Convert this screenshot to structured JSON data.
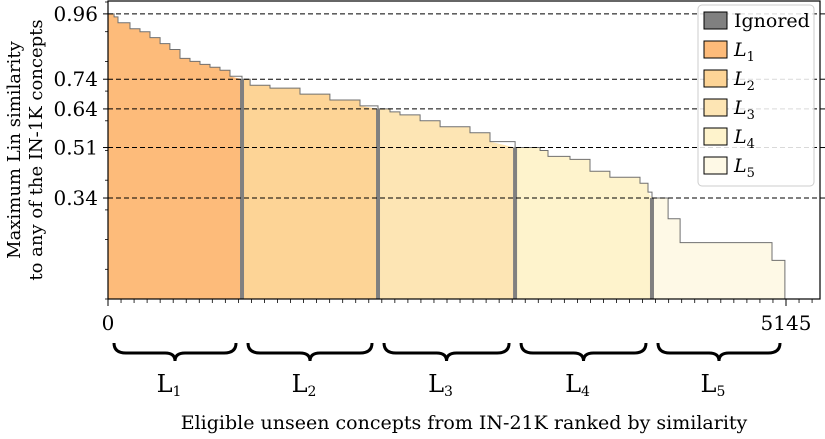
{
  "chart_data": {
    "type": "area",
    "title": "",
    "xlabel": "Eligible unseen concepts from IN-21K ranked by similarity",
    "ylabel_lines": [
      "Maximum Lin similarity",
      "to any of the IN-1K concepts"
    ],
    "xlim": [
      0,
      5145
    ],
    "ylim": [
      0,
      1
    ],
    "x_ticks": [
      0,
      5145
    ],
    "x_tick_labels": [
      "0",
      "5145"
    ],
    "y_ticks": [
      0.96,
      0.74,
      0.64,
      0.51,
      0.34
    ],
    "y_tick_labels": [
      "0.96",
      "0.74",
      "0.64",
      "0.51",
      "0.34"
    ],
    "hlines": [
      0.96,
      0.74,
      0.64,
      0.51,
      0.34
    ],
    "hline_style": "dashed",
    "grid": false,
    "legend_position": "upper right",
    "legend": [
      {
        "label": "Ignored",
        "color": "#808080"
      },
      {
        "label": "L1",
        "color": "#fdbb7a"
      },
      {
        "label": "L2",
        "color": "#fdd496"
      },
      {
        "label": "L3",
        "color": "#fde5b4"
      },
      {
        "label": "L4",
        "color": "#fef3cc"
      },
      {
        "label": "L5",
        "color": "#fef9e6"
      }
    ],
    "ignored_boundaries": [
      1017,
      2049,
      3089,
      4128
    ],
    "levels": [
      {
        "name": "L1",
        "x_range": [
          0,
          1017
        ],
        "sim_range": [
          0.74,
          0.96
        ],
        "color": "#fdbb7a"
      },
      {
        "name": "L2",
        "x_range": [
          1017,
          2049
        ],
        "sim_range": [
          0.64,
          0.74
        ],
        "color": "#fdd496"
      },
      {
        "name": "L3",
        "x_range": [
          2049,
          3089
        ],
        "sim_range": [
          0.51,
          0.64
        ],
        "color": "#fde5b4"
      },
      {
        "name": "L4",
        "x_range": [
          3089,
          4128
        ],
        "sim_range": [
          0.34,
          0.51
        ],
        "color": "#fef3cc"
      },
      {
        "name": "L5",
        "x_range": [
          4128,
          5145
        ],
        "sim_range": [
          0.0,
          0.34
        ],
        "color": "#fef9e6"
      }
    ],
    "curve": {
      "x": [
        0,
        46,
        76,
        121,
        167,
        243,
        319,
        395,
        470,
        546,
        622,
        698,
        774,
        850,
        926,
        1017,
        1078,
        1229,
        1457,
        1684,
        1912,
        2049,
        2140,
        2216,
        2368,
        2520,
        2747,
        2899,
        3089,
        3279,
        3339,
        3506,
        3658,
        3809,
        4037,
        4098,
        4128,
        4242,
        4250,
        4326,
        4341,
        5039,
        5039,
        5122,
        5137
      ],
      "y": [
        0.96,
        0.95,
        0.93,
        0.93,
        0.91,
        0.9,
        0.88,
        0.86,
        0.84,
        0.81,
        0.8,
        0.79,
        0.78,
        0.77,
        0.75,
        0.74,
        0.72,
        0.71,
        0.69,
        0.67,
        0.65,
        0.64,
        0.63,
        0.62,
        0.6,
        0.58,
        0.56,
        0.53,
        0.51,
        0.5,
        0.48,
        0.47,
        0.43,
        0.41,
        0.39,
        0.36,
        0.34,
        0.34,
        0.27,
        0.27,
        0.19,
        0.19,
        0.13,
        0.13,
        0.0
      ]
    },
    "bracket_labels": [
      "L1",
      "L2",
      "L3",
      "L4",
      "L5"
    ]
  }
}
